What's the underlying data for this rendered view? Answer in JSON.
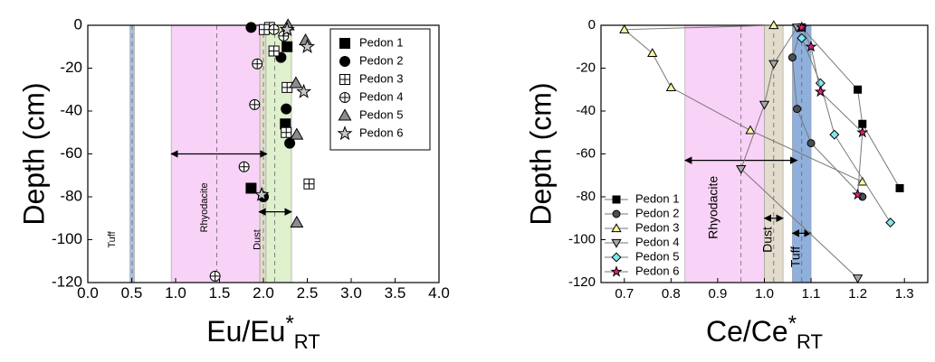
{
  "chart_data": [
    {
      "type": "scatter",
      "ylabel": "Depth (cm)",
      "xlabel": {
        "base": "Eu/Eu",
        "sup": "*",
        "sub": "RT"
      },
      "xlim": [
        0,
        4
      ],
      "ylim": [
        -120,
        0
      ],
      "xticks": [
        {
          "value": 0,
          "label": "0.0"
        },
        0.5,
        {
          "value": 1,
          "label": "1.0"
        },
        1.5,
        {
          "value": 2,
          "label": "2.0"
        },
        2.5,
        {
          "value": 3,
          "label": "3.0"
        },
        3.5,
        {
          "value": 4,
          "label": "4.0"
        }
      ],
      "yticks": [
        0,
        -20,
        -40,
        -60,
        -80,
        -100,
        -120
      ],
      "legend": "upper right",
      "bands": [
        {
          "label": "Tuff",
          "range": [
            0.48,
            0.53
          ],
          "color": "#a9c1e3",
          "dash": 0.505,
          "label_y": -100
        },
        {
          "label": "Rhyodacite",
          "range": [
            0.95,
            1.96
          ],
          "color": "#f9d2f7",
          "dash": 1.47,
          "label_y": -85
        },
        {
          "label": "Dust",
          "range": [
            1.96,
            2.03
          ],
          "color": "#e3dccd",
          "dash": 2.0,
          "label_y": -100
        },
        {
          "range": [
            2.03,
            2.32
          ],
          "color": "#dff0cc",
          "dash": 2.13
        }
      ],
      "arrows": [
        {
          "x": [
            0.95,
            2.04
          ],
          "y": -60
        },
        {
          "x": [
            1.95,
            2.32
          ],
          "y": -87
        }
      ],
      "series": [
        {
          "name": "Pedon 1",
          "marker": "square",
          "color": "#000000",
          "x": [
            2.27,
            2.25,
            1.86
          ],
          "values": [
            -10,
            -46,
            -76
          ]
        },
        {
          "name": "Pedon 2",
          "marker": "circle",
          "color": "#000000",
          "x": [
            1.86,
            2.2,
            2.26,
            2.3,
            2.0
          ],
          "values": [
            -1,
            -15,
            -39,
            -55,
            -80
          ]
        },
        {
          "name": "Pedon 3",
          "marker": "square-plus",
          "color": "#ffffff",
          "x": [
            2.07,
            2.01,
            2.12,
            2.27,
            2.26,
            2.52
          ],
          "values": [
            -1,
            -2,
            -12,
            -29,
            -50,
            -74
          ]
        },
        {
          "name": "Pedon 4",
          "marker": "circle-plus",
          "color": "#ffffff",
          "x": [
            2.12,
            2.23,
            1.93,
            1.9,
            1.78,
            1.45
          ],
          "values": [
            -2,
            -5,
            -18,
            -37,
            -66,
            -117
          ]
        },
        {
          "name": "Pedon 5",
          "marker": "triangle",
          "color": "#8c8c8c",
          "x": [
            2.28,
            2.48,
            2.37,
            2.38,
            2.38
          ],
          "values": [
            0,
            -7,
            -27,
            -51,
            -92
          ]
        },
        {
          "name": "Pedon 6",
          "marker": "star",
          "color": "#c8c8c8",
          "x": [
            2.27,
            2.5,
            2.46,
            1.98
          ],
          "values": [
            -2,
            -10,
            -31,
            -79
          ]
        }
      ]
    },
    {
      "type": "line",
      "ylabel": "Depth (cm)",
      "xlabel": {
        "base": "Ce/Ce",
        "sup": "*",
        "sub": "RT"
      },
      "xlim": [
        0.65,
        1.35
      ],
      "ylim": [
        -120,
        0
      ],
      "xticks": [
        0.7,
        0.8,
        0.9,
        {
          "value": 1,
          "label": "1.0"
        },
        1.1,
        1.2,
        1.3
      ],
      "yticks": [
        0,
        -20,
        -40,
        -60,
        -80,
        -100,
        -120
      ],
      "legend": "lower left",
      "bands": [
        {
          "label": "Rhyodacite",
          "range": [
            0.83,
            1.0
          ],
          "color": "#f9d2f7",
          "dash": 0.95,
          "label_y": -85
        },
        {
          "label": "Dust",
          "range": [
            1.0,
            1.04
          ],
          "color": "#e3dccd",
          "dash": 1.02,
          "label_y": -100
        },
        {
          "label": "Tuff",
          "range": [
            1.06,
            1.1
          ],
          "color": "#8fb0dc",
          "dash": 1.08,
          "label_y": -108
        }
      ],
      "arrows": [
        {
          "x": [
            0.83,
            1.07
          ],
          "y": -63
        },
        {
          "x": [
            1.0,
            1.04
          ],
          "y": -90
        },
        {
          "x": [
            1.06,
            1.1
          ],
          "y": -97
        }
      ],
      "series": [
        {
          "name": "Pedon 1",
          "marker": "square",
          "color": "#000000",
          "x": [
            1.08,
            1.2,
            1.21,
            1.29
          ],
          "values": [
            -1,
            -30,
            -46,
            -76
          ]
        },
        {
          "name": "Pedon 2",
          "marker": "circle",
          "color": "#4a4f57",
          "x": [
            1.08,
            1.06,
            1.07,
            1.1,
            1.21
          ],
          "values": [
            -1,
            -15,
            -39,
            -55,
            -80
          ]
        },
        {
          "name": "Pedon 3",
          "marker": "triangle",
          "color": "#fbf7a0",
          "x": [
            1.02,
            0.7,
            0.76,
            0.8,
            0.97,
            1.21
          ],
          "values": [
            0,
            -2,
            -13,
            -29,
            -49,
            -73
          ]
        },
        {
          "name": "Pedon 4",
          "marker": "triangle-down",
          "color": "#a8a8a8",
          "x": [
            1.07,
            1.02,
            1.0,
            0.95,
            1.2
          ],
          "values": [
            -1,
            -18,
            -37,
            -67,
            -118
          ]
        },
        {
          "name": "Pedon 5",
          "marker": "diamond",
          "color": "#7fe8f0",
          "x": [
            1.08,
            1.12,
            1.15,
            1.27
          ],
          "values": [
            -6,
            -27,
            -51,
            -92
          ]
        },
        {
          "name": "Pedon 6",
          "marker": "star",
          "color": "#e8217a",
          "x": [
            1.08,
            1.1,
            1.12,
            1.21,
            1.2
          ],
          "values": [
            -1,
            -10,
            -31,
            -50,
            -79
          ]
        }
      ]
    }
  ]
}
